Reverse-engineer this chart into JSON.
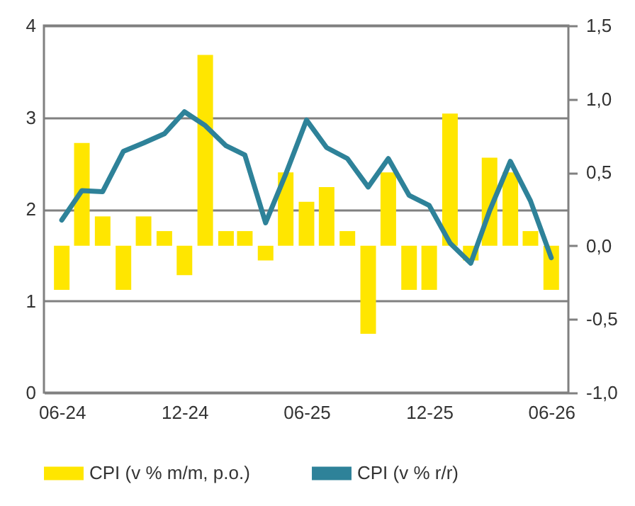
{
  "chart_data": {
    "type": "bar",
    "x": [
      "2024-06",
      "2024-07",
      "2024-08",
      "2024-09",
      "2024-10",
      "2024-11",
      "2024-12",
      "2025-01",
      "2025-02",
      "2025-03",
      "2025-04",
      "2025-05",
      "2025-06",
      "2025-07",
      "2025-08",
      "2025-09",
      "2025-10",
      "2025-11",
      "2025-12",
      "2026-01",
      "2026-02",
      "2026-03",
      "2026-04",
      "2026-05",
      "2026-06"
    ],
    "series": [
      {
        "name": "CPI (v % m/m, p.o.)",
        "axis": "y2",
        "color": "#ffe600",
        "values": [
          -0.3,
          0.7,
          0.2,
          -0.3,
          0.2,
          0.1,
          -0.2,
          1.3,
          0.1,
          0.1,
          -0.1,
          0.5,
          0.3,
          0.4,
          0.1,
          -0.6,
          0.5,
          -0.3,
          -0.3,
          0.9,
          -0.1,
          0.6,
          0.5,
          0.1,
          -0.3
        ]
      },
      {
        "name": "CPI (v % r/r)",
        "type": "line",
        "color": "#2e8299",
        "values": [
          1.88,
          2.2,
          2.19,
          2.63,
          2.72,
          2.82,
          3.06,
          2.91,
          2.69,
          2.59,
          1.85,
          2.38,
          2.97,
          2.67,
          2.55,
          2.24,
          2.55,
          2.15,
          2.04,
          1.63,
          1.41,
          1.98,
          2.52,
          2.09,
          1.47
        ]
      }
    ],
    "xlim": [
      "2024-05-16",
      "2026-06-16"
    ],
    "xticks": [
      {
        "value": "2024-06",
        "label": "06-24"
      },
      {
        "value": "2024-12",
        "label": "12-24"
      },
      {
        "value": "2025-06",
        "label": "06-25"
      },
      {
        "value": "2025-12",
        "label": "12-25"
      },
      {
        "value": "2026-06",
        "label": "06-26"
      }
    ],
    "ylim": [
      0,
      4
    ],
    "yticks": [
      0,
      1,
      2,
      3,
      4
    ],
    "y2lim": [
      -1.0,
      1.5
    ],
    "y2ticks": [
      {
        "value": -1.0,
        "label": "-1,0"
      },
      {
        "value": -0.5,
        "label": "-0,5"
      },
      {
        "value": 0.0,
        "label": "0,0"
      },
      {
        "value": 0.5,
        "label": "0,5"
      },
      {
        "value": 1.0,
        "label": "1,0"
      },
      {
        "value": 1.5,
        "label": "1,5"
      }
    ],
    "grid": "y",
    "legend": "bottom"
  }
}
